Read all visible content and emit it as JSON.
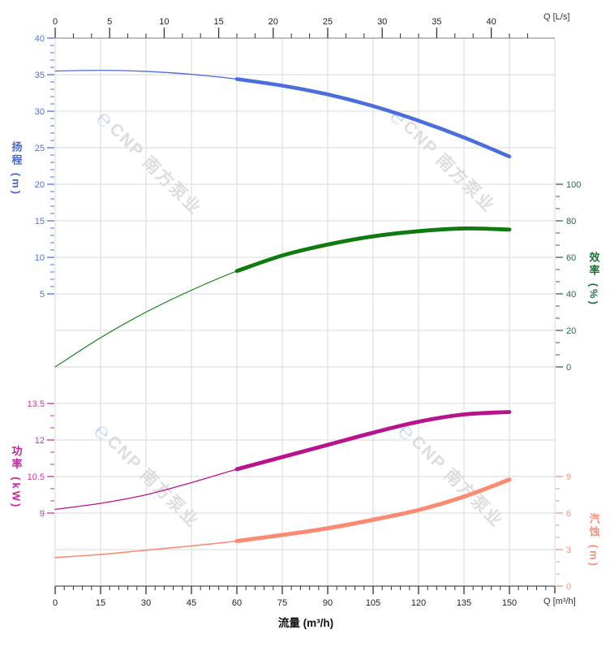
{
  "watermark": {
    "logo": "℮",
    "text": "CNP 南方泵业"
  },
  "chart_data": {
    "type": "line",
    "title": "",
    "x_axis_bottom": {
      "label": "流量 (m³/h)",
      "unit": "Q [m³/h]",
      "ticks": [
        0,
        15,
        30,
        45,
        60,
        75,
        90,
        105,
        120,
        135,
        150
      ],
      "minor_step": 3,
      "max": 165,
      "tick_color": "#333333",
      "label_color": "#222222"
    },
    "x_axis_top": {
      "unit": "Q [L/s]",
      "ticks": [
        0,
        5,
        10,
        15,
        20,
        25,
        30,
        35,
        40
      ],
      "tick_color": "#333333",
      "label_color": "#222222"
    },
    "y_axes": [
      {
        "id": "head",
        "label": "扬程 (m)",
        "side": "left",
        "ticks": [
          40,
          35,
          30,
          25,
          20,
          15,
          10,
          5
        ],
        "minor_step": 1,
        "color": "#4f6fdf",
        "range": [
          0,
          40
        ]
      },
      {
        "id": "eff",
        "label": "效率 (%)",
        "side": "right",
        "ticks": [
          100,
          80,
          60,
          40,
          20,
          0
        ],
        "minors_per_major": 2,
        "color": "#256e42",
        "range": [
          0,
          100
        ]
      },
      {
        "id": "power",
        "label": "功率 (kW)",
        "side": "left",
        "ticks": [
          13.5,
          12,
          10.5,
          9
        ],
        "minor_step": 0.5,
        "color": "#c437a0",
        "range": [
          9,
          13.5
        ]
      },
      {
        "id": "npsh",
        "label": "汽蚀 (m)",
        "side": "right",
        "ticks": [
          9,
          6,
          3,
          0
        ],
        "minor_step": 1,
        "color": "#fb9279",
        "range": [
          0,
          9
        ]
      }
    ],
    "series": [
      {
        "id": "head-curve",
        "name": "扬程",
        "axis": "head",
        "color": "#4a6edb",
        "duty_from": 60,
        "points": [
          [
            0,
            35.5
          ],
          [
            15,
            35.6
          ],
          [
            30,
            35.45
          ],
          [
            45,
            35.05
          ],
          [
            60,
            34.4
          ],
          [
            75,
            33.5
          ],
          [
            90,
            32.3
          ],
          [
            105,
            30.7
          ],
          [
            120,
            28.7
          ],
          [
            135,
            26.4
          ],
          [
            150,
            23.8
          ]
        ]
      },
      {
        "id": "efficiency-curve",
        "name": "效率",
        "axis": "eff",
        "color": "#0f7a0f",
        "duty_from": 60,
        "points": [
          [
            0,
            0
          ],
          [
            15,
            16
          ],
          [
            30,
            30
          ],
          [
            45,
            42
          ],
          [
            60,
            52.5
          ],
          [
            75,
            61
          ],
          [
            90,
            67
          ],
          [
            105,
            71.5
          ],
          [
            120,
            74.3
          ],
          [
            135,
            75.8
          ],
          [
            150,
            75.2
          ]
        ]
      },
      {
        "id": "power-curve",
        "name": "功率",
        "axis": "power",
        "color": "#b8138e",
        "duty_from": 60,
        "points": [
          [
            0,
            9.15
          ],
          [
            15,
            9.4
          ],
          [
            30,
            9.75
          ],
          [
            45,
            10.25
          ],
          [
            60,
            10.8
          ],
          [
            75,
            11.3
          ],
          [
            90,
            11.8
          ],
          [
            105,
            12.3
          ],
          [
            120,
            12.75
          ],
          [
            135,
            13.05
          ],
          [
            150,
            13.15
          ]
        ]
      },
      {
        "id": "npsh-curve",
        "name": "汽蚀",
        "axis": "npsh",
        "color": "#fa8b70",
        "duty_from": 60,
        "points": [
          [
            0,
            2.35
          ],
          [
            15,
            2.6
          ],
          [
            30,
            2.95
          ],
          [
            45,
            3.3
          ],
          [
            60,
            3.7
          ],
          [
            75,
            4.2
          ],
          [
            90,
            4.75
          ],
          [
            105,
            5.45
          ],
          [
            120,
            6.25
          ],
          [
            135,
            7.35
          ],
          [
            150,
            8.75
          ]
        ]
      }
    ],
    "grid": true
  }
}
